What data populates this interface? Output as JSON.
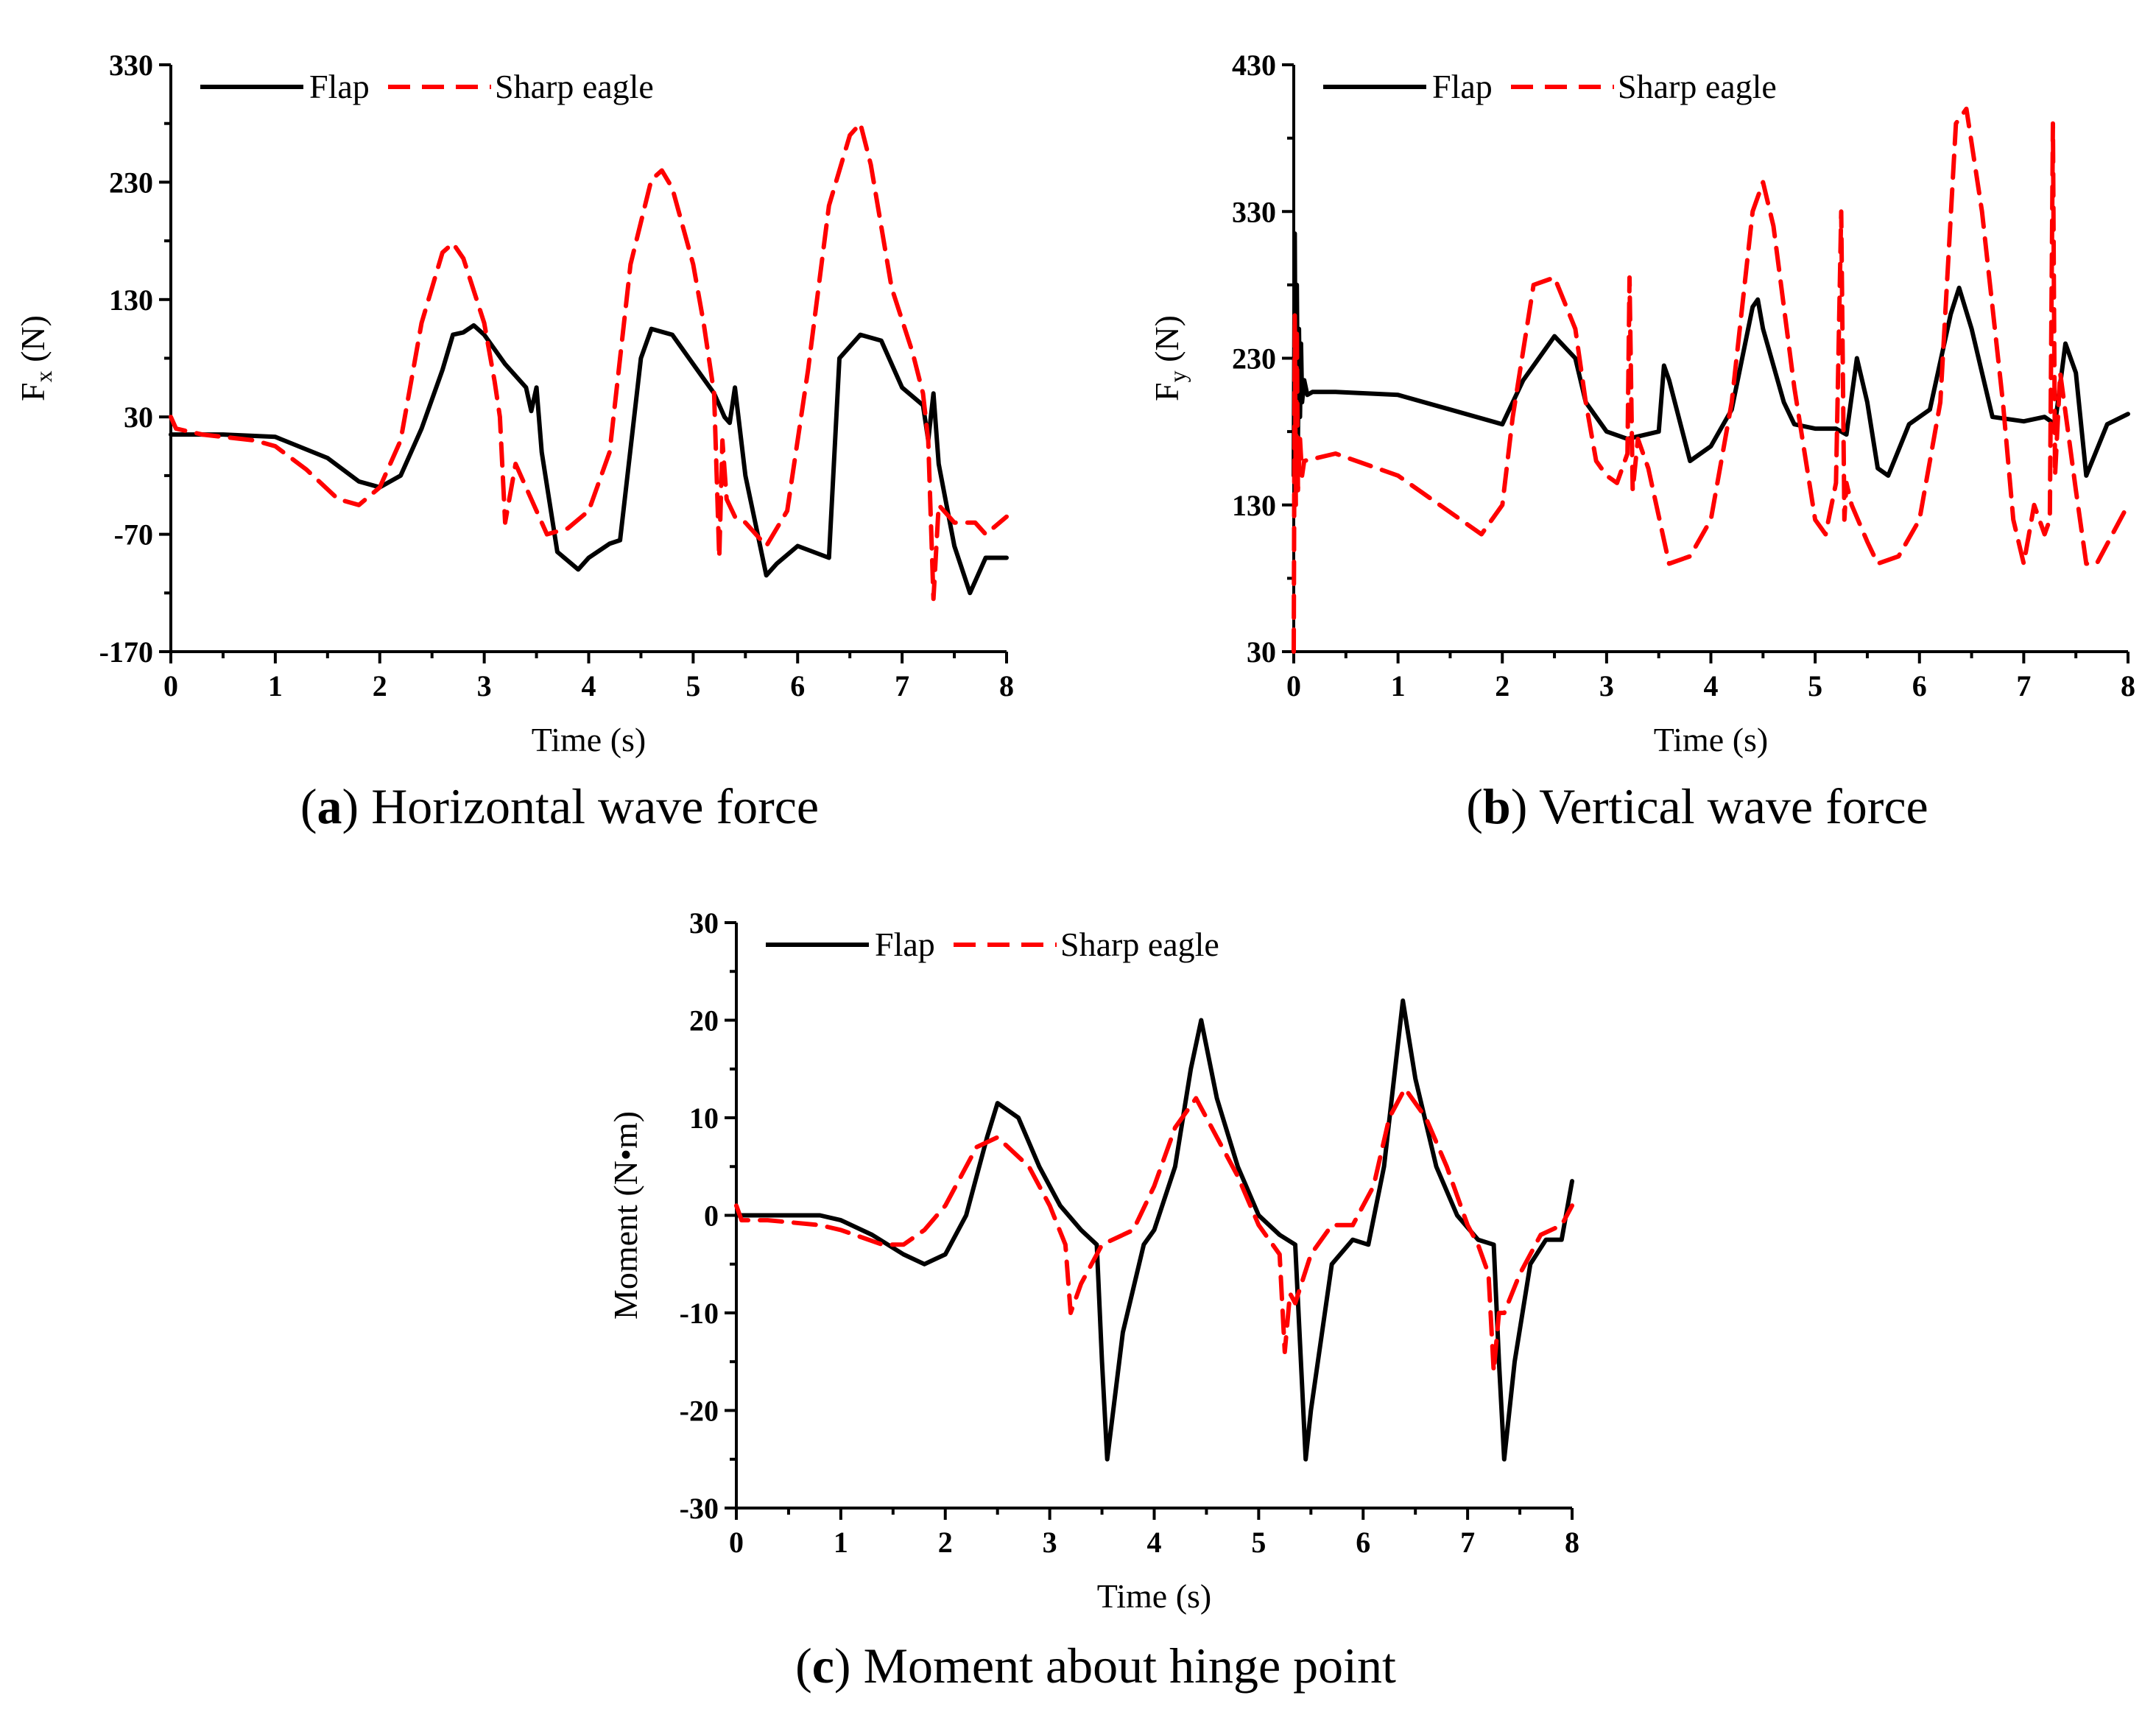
{
  "colors": {
    "flap": "#000000",
    "sharp_eagle": "#ff0000"
  },
  "legend": {
    "flap": "Flap",
    "sharp_eagle": "Sharp eagle"
  },
  "captions": [
    {
      "letter": "a",
      "open": "(",
      "close": ")",
      "text": " Horizontal wave force"
    },
    {
      "letter": "b",
      "open": "(",
      "close": ")",
      "text": " Vertical wave force"
    },
    {
      "letter": "c",
      "open": "(",
      "close": ")",
      "text": " Moment about hinge point"
    }
  ],
  "chart_data": [
    {
      "type": "line",
      "title": "Horizontal wave force",
      "xlabel": "Time (s)",
      "ylabel": "Fx (N)",
      "ylabel_main": "F",
      "ylabel_sub": "x",
      "ylabel_unit": " (N)",
      "xlim": [
        0,
        8
      ],
      "ylim": [
        -170,
        330
      ],
      "xticks": [
        "0",
        "1",
        "2",
        "3",
        "4",
        "5",
        "6",
        "7",
        "8"
      ],
      "yticks": [
        "-170",
        "-70",
        "30",
        "130",
        "230",
        "330"
      ],
      "legend_position": "top-left",
      "series": [
        {
          "name": "Flap",
          "x": [
            0,
            0.5,
            1.0,
            1.5,
            1.8,
            2.0,
            2.2,
            2.4,
            2.6,
            2.7,
            2.8,
            2.9,
            3.0,
            3.2,
            3.4,
            3.45,
            3.5,
            3.55,
            3.7,
            3.9,
            4.0,
            4.2,
            4.3,
            4.5,
            4.6,
            4.8,
            5.0,
            5.2,
            5.3,
            5.35,
            5.4,
            5.5,
            5.7,
            5.8,
            6.0,
            6.3,
            6.4,
            6.6,
            6.8,
            7.0,
            7.2,
            7.25,
            7.3,
            7.35,
            7.5,
            7.65,
            7.8,
            8.0
          ],
          "values": [
            15,
            15,
            13,
            -5,
            -25,
            -30,
            -20,
            20,
            70,
            100,
            102,
            108,
            100,
            75,
            55,
            35,
            55,
            0,
            -85,
            -100,
            -90,
            -78,
            -75,
            80,
            105,
            100,
            75,
            50,
            30,
            25,
            55,
            -20,
            -105,
            -95,
            -80,
            -90,
            80,
            100,
            95,
            55,
            40,
            10,
            50,
            -10,
            -80,
            -120,
            -90,
            -90
          ]
        },
        {
          "name": "Sharp eagle",
          "x": [
            0,
            0.05,
            0.3,
            0.8,
            1.0,
            1.3,
            1.6,
            1.8,
            2.0,
            2.2,
            2.4,
            2.6,
            2.7,
            2.8,
            3.0,
            3.1,
            3.15,
            3.2,
            3.3,
            3.6,
            3.8,
            4.0,
            4.2,
            4.4,
            4.6,
            4.7,
            4.8,
            5.0,
            5.1,
            5.2,
            5.25,
            5.28,
            5.32,
            5.4,
            5.5,
            5.7,
            5.9,
            6.1,
            6.3,
            6.5,
            6.6,
            6.7,
            6.9,
            7.1,
            7.2,
            7.25,
            7.3,
            7.35,
            7.5,
            7.7,
            7.8,
            8.0
          ],
          "values": [
            30,
            20,
            15,
            10,
            5,
            -15,
            -40,
            -45,
            -30,
            10,
            110,
            170,
            178,
            165,
            110,
            60,
            30,
            -60,
            -10,
            -70,
            -65,
            -50,
            0,
            160,
            232,
            240,
            225,
            160,
            110,
            50,
            -90,
            10,
            -40,
            -55,
            -60,
            -80,
            -50,
            70,
            210,
            270,
            280,
            245,
            140,
            85,
            50,
            10,
            -125,
            -45,
            -60,
            -60,
            -70,
            -55
          ]
        }
      ]
    },
    {
      "type": "line",
      "title": "Vertical wave force",
      "xlabel": "Time (s)",
      "ylabel": "Fy (N)",
      "ylabel_main": "F",
      "ylabel_sub": "y",
      "ylabel_unit": " (N)",
      "xlim": [
        0,
        8
      ],
      "ylim": [
        30,
        430
      ],
      "xticks": [
        "0",
        "1",
        "2",
        "3",
        "4",
        "5",
        "6",
        "7",
        "8"
      ],
      "yticks": [
        "30",
        "130",
        "230",
        "330",
        "430"
      ],
      "legend_position": "top-left",
      "series": [
        {
          "name": "Flap",
          "x": [
            0,
            0.01,
            0.02,
            0.03,
            0.04,
            0.05,
            0.06,
            0.07,
            0.08,
            0.1,
            0.13,
            0.18,
            0.4,
            1.0,
            1.5,
            2.0,
            2.2,
            2.5,
            2.7,
            2.8,
            3.0,
            3.2,
            3.5,
            3.55,
            3.6,
            3.8,
            4.0,
            4.2,
            4.4,
            4.45,
            4.5,
            4.7,
            4.8,
            5.0,
            5.2,
            5.3,
            5.4,
            5.5,
            5.6,
            5.7,
            5.9,
            6.1,
            6.3,
            6.38,
            6.5,
            6.7,
            7.0,
            7.2,
            7.3,
            7.4,
            7.5,
            7.6,
            7.8,
            8.0
          ],
          "values": [
            150,
            315,
            160,
            280,
            175,
            250,
            190,
            240,
            200,
            215,
            205,
            207,
            207,
            205,
            195,
            185,
            215,
            245,
            230,
            200,
            180,
            175,
            180,
            225,
            215,
            160,
            170,
            195,
            265,
            270,
            250,
            200,
            185,
            182,
            182,
            178,
            230,
            200,
            155,
            150,
            185,
            195,
            260,
            278,
            250,
            190,
            187,
            190,
            185,
            240,
            220,
            150,
            185,
            192
          ]
        },
        {
          "name": "Sharp eagle",
          "x": [
            0,
            0.01,
            0.02,
            0.03,
            0.04,
            0.06,
            0.08,
            0.1,
            0.4,
            1.0,
            1.5,
            1.8,
            2.0,
            2.1,
            2.3,
            2.5,
            2.7,
            2.8,
            2.9,
            3.0,
            3.1,
            3.2,
            3.22,
            3.25,
            3.3,
            3.4,
            3.6,
            3.8,
            4.0,
            4.2,
            4.4,
            4.5,
            4.6,
            4.8,
            5.0,
            5.1,
            5.2,
            5.25,
            5.28,
            5.3,
            5.35,
            5.5,
            5.6,
            5.8,
            6.0,
            6.2,
            6.35,
            6.45,
            6.6,
            6.8,
            6.9,
            7.0,
            7.1,
            7.2,
            7.25,
            7.28,
            7.3,
            7.35,
            7.5,
            7.6,
            7.7,
            8.0
          ],
          "values": [
            30,
            260,
            130,
            250,
            140,
            175,
            150,
            160,
            165,
            150,
            125,
            110,
            130,
            190,
            280,
            285,
            250,
            200,
            160,
            150,
            145,
            165,
            285,
            140,
            175,
            155,
            90,
            95,
            120,
            200,
            330,
            350,
            320,
            210,
            120,
            110,
            145,
            330,
            120,
            145,
            130,
            105,
            90,
            95,
            120,
            200,
            390,
            400,
            330,
            200,
            120,
            90,
            130,
            110,
            120,
            390,
            150,
            220,
            140,
            90,
            90,
            130
          ]
        }
      ]
    },
    {
      "type": "line",
      "title": "Moment about hinge point",
      "xlabel": "Time (s)",
      "ylabel": "Moment (N•m)",
      "ylabel_main": "Moment (N•m)",
      "ylabel_sub": "",
      "ylabel_unit": "",
      "xlim": [
        0,
        8
      ],
      "ylim": [
        -30,
        30
      ],
      "xticks": [
        "0",
        "1",
        "2",
        "3",
        "4",
        "5",
        "6",
        "7",
        "8"
      ],
      "yticks": [
        "-30",
        "-20",
        "-10",
        "0",
        "10",
        "20",
        "30"
      ],
      "legend_position": "top-left",
      "series": [
        {
          "name": "Flap",
          "x": [
            0,
            0.5,
            0.8,
            1.0,
            1.3,
            1.6,
            1.8,
            2.0,
            2.2,
            2.4,
            2.5,
            2.7,
            2.9,
            3.1,
            3.3,
            3.45,
            3.5,
            3.55,
            3.7,
            3.9,
            4.0,
            4.2,
            4.35,
            4.45,
            4.6,
            4.8,
            5.0,
            5.2,
            5.35,
            5.45,
            5.5,
            5.7,
            5.9,
            6.05,
            6.2,
            6.38,
            6.5,
            6.7,
            6.9,
            7.1,
            7.25,
            7.3,
            7.35,
            7.45,
            7.6,
            7.75,
            7.9,
            8.0
          ],
          "values": [
            0,
            0,
            0,
            -0.5,
            -2,
            -4,
            -5,
            -4,
            0,
            8,
            11.5,
            10,
            5,
            1,
            -1.5,
            -3,
            -15,
            -25,
            -12,
            -3,
            -1.5,
            5,
            15,
            20,
            12,
            5,
            0,
            -2,
            -3,
            -25,
            -20,
            -5,
            -2.5,
            -3,
            5,
            22,
            14,
            5,
            0,
            -2.5,
            -3,
            -15,
            -25,
            -15,
            -5,
            -2.5,
            -2.5,
            3.5
          ]
        },
        {
          "name": "Sharp eagle",
          "x": [
            0,
            0.05,
            0.3,
            0.8,
            1.0,
            1.4,
            1.6,
            1.8,
            2.0,
            2.3,
            2.5,
            2.8,
            3.0,
            3.15,
            3.2,
            3.3,
            3.5,
            3.8,
            4.0,
            4.2,
            4.4,
            4.6,
            4.8,
            5.0,
            5.2,
            5.25,
            5.3,
            5.35,
            5.5,
            5.7,
            5.9,
            6.1,
            6.25,
            6.4,
            6.6,
            6.8,
            7.0,
            7.1,
            7.2,
            7.25,
            7.3,
            7.35,
            7.5,
            7.7,
            7.9,
            8.0
          ],
          "values": [
            1,
            -0.5,
            -0.5,
            -1,
            -1.5,
            -3,
            -3,
            -1.5,
            1,
            7,
            8,
            5,
            1,
            -3,
            -10,
            -7,
            -3,
            -1.5,
            3,
            9,
            12,
            8,
            4,
            -1,
            -4,
            -14,
            -8,
            -9,
            -4,
            -1,
            -1,
            3,
            10,
            13,
            10,
            5,
            -1,
            -3,
            -6,
            -16,
            -10,
            -10,
            -6,
            -2,
            -1,
            1
          ]
        }
      ]
    }
  ]
}
